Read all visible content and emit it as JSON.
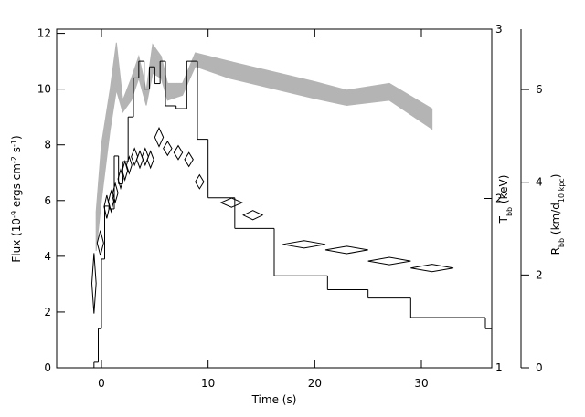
{
  "chart_data": [
    {
      "type": "histogram",
      "xlabel": "Time (s)",
      "ylabel_parts": [
        {
          "text": "Flux (10"
        },
        {
          "text": "-9",
          "sup": true
        },
        {
          "text": " ergs cm"
        },
        {
          "text": "-2",
          "sup": true
        },
        {
          "text": " s"
        },
        {
          "text": "-1",
          "sup": true
        },
        {
          "text": ")"
        }
      ],
      "bins": [
        -0.7,
        -0.3,
        0,
        0.3,
        0.7,
        1.2,
        1.6,
        2.0,
        2.5,
        3.0,
        3.5,
        4.0,
        4.5,
        5.0,
        5.5,
        6.0,
        7.0,
        8.0,
        9.0,
        10.0,
        12.5,
        16.2,
        21.2,
        25.0,
        29.0,
        36.0,
        36.6
      ],
      "counts": [
        0.2,
        1.4,
        3.9,
        5.8,
        5.7,
        7.6,
        6.6,
        7.4,
        9.0,
        10.4,
        11.0,
        10.0,
        10.8,
        10.2,
        11.0,
        9.4,
        9.3,
        11.0,
        8.2,
        6.1,
        5.0,
        3.3,
        2.8,
        2.5,
        1.8,
        1.4
      ],
      "color": "#000000",
      "xlim": [
        -4.2,
        36.6
      ],
      "xticks": [
        0,
        10,
        20,
        30
      ],
      "ylim": [
        0,
        12.15
      ],
      "yticks": [
        0,
        2,
        4,
        6,
        8,
        10,
        12
      ]
    },
    {
      "type": "area",
      "axis": "y2",
      "x": [
        -0.5,
        0,
        0.8,
        1.4,
        2.0,
        2.8,
        3.5,
        4.2,
        4.8,
        5.6,
        6.2,
        7.6,
        8.8,
        12,
        20,
        23,
        27,
        31
      ],
      "upper": [
        1.92,
        2.32,
        2.64,
        2.92,
        2.58,
        2.71,
        2.84,
        2.64,
        2.91,
        2.84,
        2.68,
        2.68,
        2.86,
        2.81,
        2.69,
        2.64,
        2.68,
        2.53
      ],
      "lower": [
        1.69,
        1.99,
        2.4,
        2.64,
        2.51,
        2.58,
        2.71,
        2.55,
        2.74,
        2.71,
        2.58,
        2.61,
        2.78,
        2.71,
        2.59,
        2.55,
        2.58,
        2.41
      ],
      "color": "#b4b4b4",
      "y2lim": [
        1,
        3
      ],
      "y2ticks": [
        1,
        2,
        3
      ],
      "y2label_parts": [
        {
          "text": "T"
        },
        {
          "text": "bb",
          "sub": true
        },
        {
          "text": " (keV)"
        }
      ]
    },
    {
      "type": "scatter",
      "marker": "diamond",
      "axis": "y3",
      "x": [
        -0.7,
        -0.1,
        0.5,
        0.9,
        1.3,
        1.8,
        2.2,
        2.6,
        3.1,
        3.6,
        4.1,
        4.6,
        5.4,
        6.2,
        7.2,
        8.2,
        9.2,
        12.2,
        14.2,
        19,
        23,
        27,
        31
      ],
      "xerr": [
        0.2,
        0.3,
        0.25,
        0.25,
        0.25,
        0.25,
        0.25,
        0.25,
        0.3,
        0.3,
        0.3,
        0.3,
        0.4,
        0.4,
        0.4,
        0.4,
        0.4,
        1.0,
        0.9,
        2.0,
        2.0,
        2.0,
        2.0
      ],
      "values": [
        1.82,
        2.69,
        3.47,
        3.59,
        3.77,
        4.07,
        4.25,
        4.37,
        4.55,
        4.49,
        4.55,
        4.49,
        4.97,
        4.73,
        4.64,
        4.49,
        4.01,
        3.56,
        3.29,
        2.66,
        2.54,
        2.3,
        2.15
      ],
      "yerr": [
        0.65,
        0.27,
        0.25,
        0.22,
        0.2,
        0.2,
        0.2,
        0.18,
        0.18,
        0.18,
        0.18,
        0.18,
        0.2,
        0.15,
        0.15,
        0.15,
        0.15,
        0.1,
        0.1,
        0.08,
        0.08,
        0.08,
        0.08
      ],
      "color": "#000000",
      "y3lim": [
        0,
        7.3
      ],
      "y3ticks": [
        0,
        2,
        4,
        6
      ],
      "y3label_parts": [
        {
          "text": "R"
        },
        {
          "text": "bb",
          "sub": true
        },
        {
          "text": " (km/d"
        },
        {
          "text": "10 kpc",
          "sub": true
        },
        {
          "text": ")"
        }
      ]
    }
  ]
}
